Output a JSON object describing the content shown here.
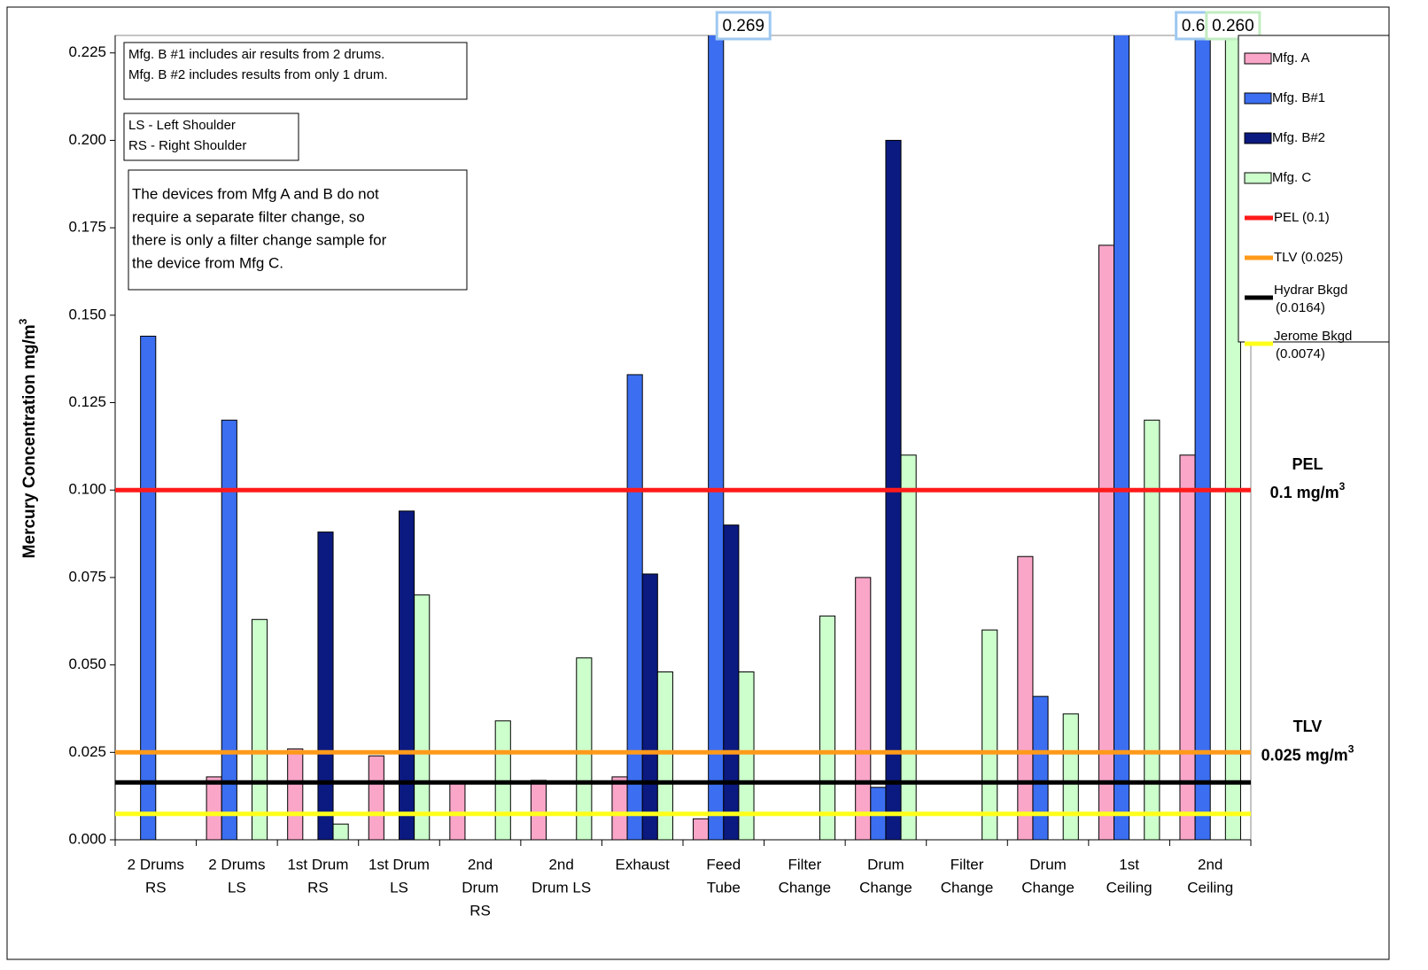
{
  "chart_data": {
    "type": "bar",
    "y_label": {
      "text": "Mercury Concentration mg/m",
      "sup": "3"
    },
    "categories": [
      [
        "2 Drums",
        "RS"
      ],
      [
        "2 Drums",
        "LS"
      ],
      [
        "1st Drum",
        "RS"
      ],
      [
        "1st Drum",
        "LS"
      ],
      [
        "2nd",
        "Drum",
        "RS"
      ],
      [
        "2nd",
        "Drum LS"
      ],
      [
        "Exhaust"
      ],
      [
        "Feed",
        "Tube"
      ],
      [
        "Filter",
        "Change"
      ],
      [
        "Drum",
        "Change"
      ],
      [
        "Filter",
        "Change"
      ],
      [
        "Drum",
        "Change"
      ],
      [
        "1st",
        "Ceiling"
      ],
      [
        "2nd",
        "Ceiling"
      ]
    ],
    "series": [
      {
        "name": "Mfg. A",
        "color": "#f9a6c9",
        "values": [
          null,
          0.018,
          0.026,
          0.024,
          0.016,
          0.017,
          0.018,
          0.006,
          null,
          0.075,
          null,
          0.081,
          0.17,
          0.11
        ]
      },
      {
        "name": "Mfg. B#1",
        "color": "#3b6ef0",
        "label_border": "#9ec8f0",
        "values": [
          0.144,
          0.12,
          null,
          null,
          null,
          null,
          0.133,
          0.269,
          null,
          0.015,
          null,
          0.041,
          0.24,
          0.64
        ],
        "value_labels": [
          null,
          null,
          null,
          null,
          null,
          null,
          null,
          "0.269",
          null,
          null,
          null,
          null,
          null,
          "0.640"
        ]
      },
      {
        "name": "Mfg. B#2",
        "color": "#0b1a80",
        "values": [
          null,
          null,
          0.088,
          0.094,
          null,
          null,
          0.076,
          0.09,
          null,
          0.2,
          null,
          null,
          null,
          null
        ]
      },
      {
        "name": "Mfg. C",
        "color": "#ccffcc",
        "label_border": "#c2ecc2",
        "values": [
          null,
          0.063,
          0.0045,
          0.07,
          0.034,
          0.052,
          0.048,
          0.048,
          0.064,
          0.11,
          0.06,
          0.036,
          0.12,
          0.26
        ],
        "value_labels": [
          null,
          null,
          null,
          null,
          null,
          null,
          null,
          null,
          null,
          null,
          null,
          null,
          null,
          "0.260"
        ]
      }
    ],
    "reference_lines": [
      {
        "name": [
          "PEL (0.1)"
        ],
        "value": 0.1,
        "color": "#ff1a1a"
      },
      {
        "name": [
          "TLV (0.025)"
        ],
        "value": 0.025,
        "color": "#ff9a1a"
      },
      {
        "name": [
          "Hydrar Bkgd",
          "(0.0164)"
        ],
        "value": 0.0164,
        "color": "#000000"
      },
      {
        "name": [
          "Jerome Bkgd",
          "(0.0074)"
        ],
        "value": 0.0074,
        "color": "#ffff1a"
      }
    ],
    "annotations": [
      {
        "title": "PEL",
        "text": "0.1 mg/m",
        "sup": "3"
      },
      {
        "title": "TLV",
        "text": "0.025 mg/m",
        "sup": "3"
      }
    ],
    "notes": [
      [
        "Mfg. B #1 includes air results from 2 drums.",
        "Mfg. B #2 includes results from  only 1 drum."
      ],
      [
        "LS - Left Shoulder",
        "RS - Right Shoulder"
      ],
      [
        "The devices from Mfg A and B do not",
        "require a separate filter change, so",
        "there is only a filter change sample for",
        "the device from Mfg C."
      ]
    ],
    "ylim": [
      0,
      0.23
    ],
    "yticks": [
      {
        "value": 0,
        "label": "0.000"
      },
      {
        "value": 0.025,
        "label": "0.025"
      },
      {
        "value": 0.05,
        "label": "0.050"
      },
      {
        "value": 0.075,
        "label": "0.075"
      },
      {
        "value": 0.1,
        "label": "0.100"
      },
      {
        "value": 0.125,
        "label": "0.125"
      },
      {
        "value": 0.15,
        "label": "0.150"
      },
      {
        "value": 0.175,
        "label": "0.175"
      },
      {
        "value": 0.2,
        "label": "0.200"
      },
      {
        "value": 0.225,
        "label": "0.225"
      }
    ]
  }
}
